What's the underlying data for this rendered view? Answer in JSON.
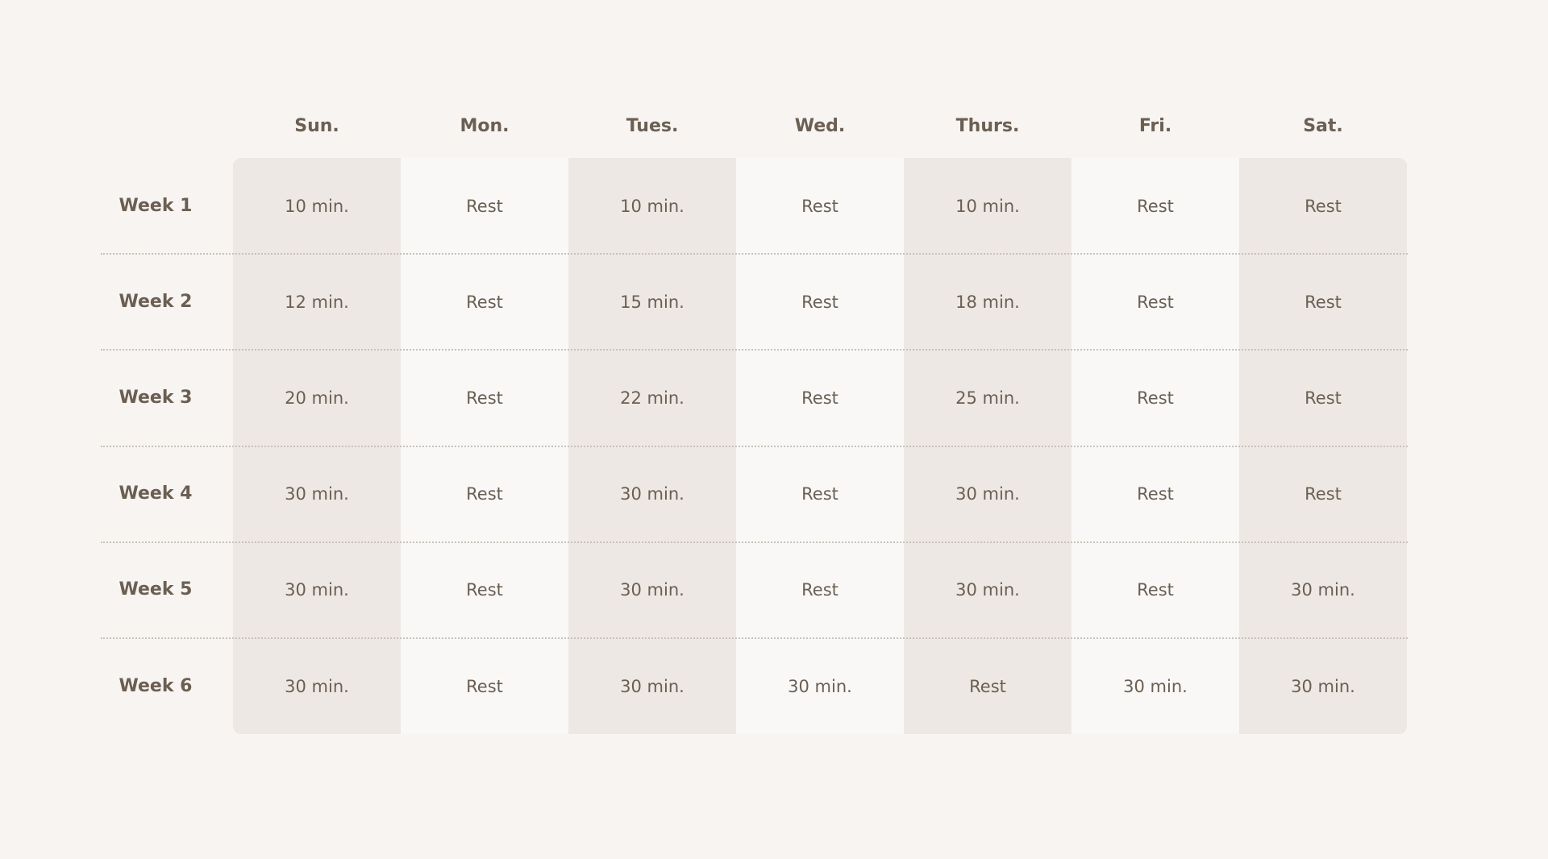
{
  "days": [
    "Sun.",
    "Mon.",
    "Tues.",
    "Wed.",
    "Thurs.",
    "Fri.",
    "Sat."
  ],
  "rows": [
    {
      "label": "Week 1",
      "cells": [
        "10 min.",
        "Rest",
        "10 min.",
        "Rest",
        "10 min.",
        "Rest",
        "Rest"
      ]
    },
    {
      "label": "Week 2",
      "cells": [
        "12 min.",
        "Rest",
        "15 min.",
        "Rest",
        "18 min.",
        "Rest",
        "Rest"
      ]
    },
    {
      "label": "Week 3",
      "cells": [
        "20 min.",
        "Rest",
        "22 min.",
        "Rest",
        "25 min.",
        "Rest",
        "Rest"
      ]
    },
    {
      "label": "Week 4",
      "cells": [
        "30 min.",
        "Rest",
        "30 min.",
        "Rest",
        "30 min.",
        "Rest",
        "Rest"
      ]
    },
    {
      "label": "Week 5",
      "cells": [
        "30 min.",
        "Rest",
        "30 min.",
        "Rest",
        "30 min.",
        "Rest",
        "30 min."
      ]
    },
    {
      "label": "Week 6",
      "cells": [
        "30 min.",
        "Rest",
        "30 min.",
        "30 min.",
        "Rest",
        "30 min.",
        "30 min."
      ]
    }
  ],
  "colors": {
    "background": "#f7f4f1",
    "shaded_column": "#ede8e4",
    "light_column": "#f9f8f7",
    "text": "#6b5f53"
  }
}
